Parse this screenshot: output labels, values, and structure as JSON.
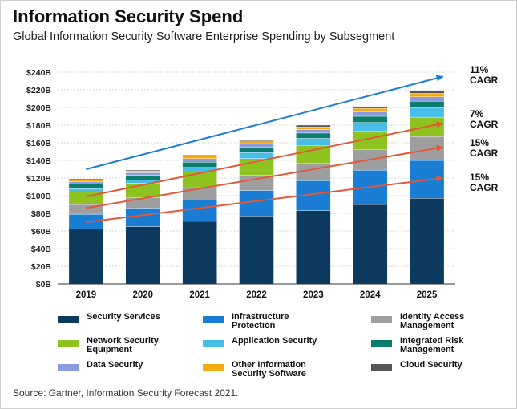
{
  "header": {
    "title": "Information Security Spend",
    "subtitle": "Global Information Security Software Enterprise Spending by Subsegment"
  },
  "source": "Source: Gartner, Information Security Forecast 2021.",
  "chart_data": {
    "type": "bar",
    "stacked": true,
    "categories": [
      "2019",
      "2020",
      "2021",
      "2022",
      "2023",
      "2024",
      "2025"
    ],
    "ylim": [
      0,
      240
    ],
    "yticks": [
      0,
      20,
      40,
      60,
      80,
      100,
      120,
      140,
      160,
      180,
      200,
      220,
      240
    ],
    "ytick_labels": [
      "$0B",
      "$20B",
      "$40B",
      "$60B",
      "$80B",
      "$100B",
      "$120B",
      "$140B",
      "$160B",
      "$180B",
      "$200B",
      "$220B",
      "$240B"
    ],
    "grid": true,
    "legend_position": "bottom",
    "series": [
      {
        "name": "Security Services",
        "color": "#0c3a5e",
        "values": [
          62,
          65,
          71,
          77,
          83,
          90,
          97
        ]
      },
      {
        "name": "Infrastructure Protection",
        "color": "#1a7dd4",
        "values": [
          17,
          21,
          24,
          29,
          34,
          39,
          43
        ]
      },
      {
        "name": "Identity Access Management",
        "color": "#9e9e9e",
        "values": [
          11,
          12,
          14,
          17,
          20,
          23,
          27
        ]
      },
      {
        "name": "Network Security Equipment",
        "color": "#8dc21f",
        "values": [
          14,
          16,
          18,
          19,
          20,
          21,
          22
        ]
      },
      {
        "name": "Application Security",
        "color": "#48bde8",
        "values": [
          4,
          4,
          5,
          7,
          8,
          10,
          11
        ]
      },
      {
        "name": "Integrated Risk Management",
        "color": "#0a7d6e",
        "values": [
          5,
          5,
          6,
          6,
          6,
          7,
          7
        ]
      },
      {
        "name": "Data Security",
        "color": "#8c9be0",
        "values": [
          3,
          3,
          4,
          4,
          4,
          5,
          5
        ]
      },
      {
        "name": "Other Information Security Software",
        "color": "#f3ab12",
        "values": [
          2,
          2,
          3,
          3,
          3,
          4,
          4
        ]
      },
      {
        "name": "Cloud Security",
        "color": "#555555",
        "values": [
          1,
          1,
          1,
          1,
          2,
          2,
          3
        ]
      }
    ],
    "trend_lines": [
      {
        "label_line1": "11%",
        "label_line2": "CAGR",
        "color": "#1d7fd0",
        "from": [
          2019,
          130
        ],
        "to": [
          2025,
          235
        ]
      },
      {
        "label_line1": "7%",
        "label_line2": "CAGR",
        "color": "#e05a3a",
        "from": [
          2019,
          99
        ],
        "to": [
          2025,
          182
        ]
      },
      {
        "label_line1": "15%",
        "label_line2": "CAGR",
        "color": "#e05a3a",
        "from": [
          2019,
          86
        ],
        "to": [
          2025,
          155
        ]
      },
      {
        "label_line1": "15%",
        "label_line2": "CAGR",
        "color": "#e05a3a",
        "from": [
          2019,
          70
        ],
        "to": [
          2025,
          120
        ]
      }
    ]
  }
}
